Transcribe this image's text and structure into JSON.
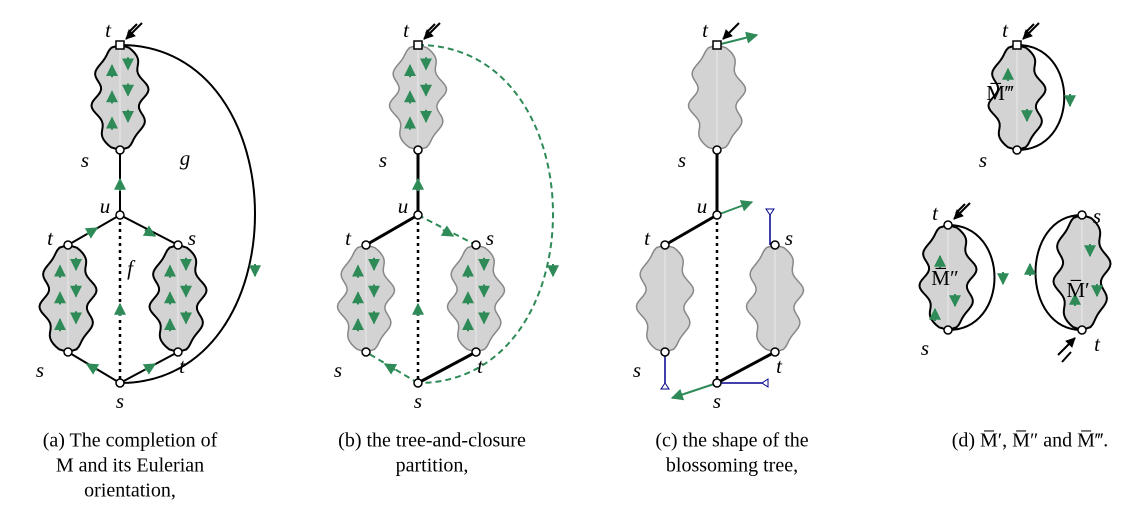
{
  "panels": [
    {
      "labels": [
        "t",
        "s",
        "g",
        "u",
        "t",
        "s",
        "f",
        "s",
        "t",
        "s"
      ],
      "caption": [
        "(a) The completion of",
        "M and its Eulerian",
        "orientation,"
      ]
    },
    {
      "labels": [
        "t",
        "s",
        "u",
        "t",
        "s",
        "s",
        "t",
        "s"
      ],
      "caption": [
        "(b) the tree-and-closure",
        "partition,"
      ]
    },
    {
      "labels": [
        "t",
        "s",
        "u",
        "t",
        "s",
        "s",
        "t",
        "s"
      ],
      "caption": [
        "(c) the shape of the",
        "blossoming tree,"
      ]
    },
    {
      "labels": [
        "t",
        "s",
        "M̅‴",
        "t",
        "M̅″",
        "s",
        "s",
        "M̅′",
        "t"
      ],
      "caption": [
        "(d) M̅′, M̅″ and M̅‴."
      ]
    }
  ]
}
